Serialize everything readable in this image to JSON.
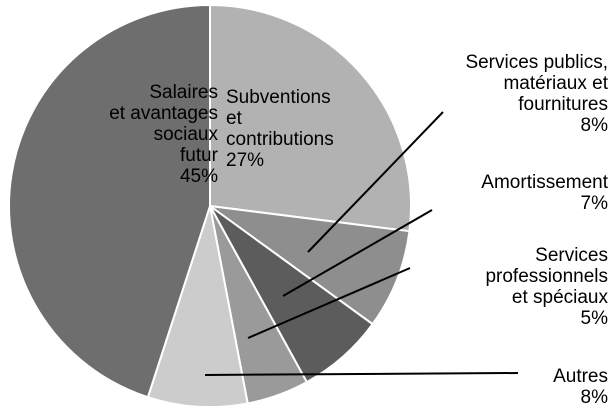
{
  "chart_data": {
    "type": "pie",
    "categories": [
      "Subventions\net\ncontributions",
      "Services publics,\nmatériaux et\nfournitures",
      "Amortissement",
      "Services\nprofessionnels\net spéciaux",
      "Autres",
      "Salaires\net avantages\nsociaux\nfutur"
    ],
    "values": [
      27,
      8,
      7,
      5,
      8,
      45
    ],
    "value_labels": [
      "27%",
      "8%",
      "7%",
      "5%",
      "8%",
      "45%"
    ],
    "colors": [
      "#b2b2b2",
      "#8e8e8e",
      "#5c5c5c",
      "#9a9a9a",
      "#cccccc",
      "#6e6e6e"
    ]
  }
}
